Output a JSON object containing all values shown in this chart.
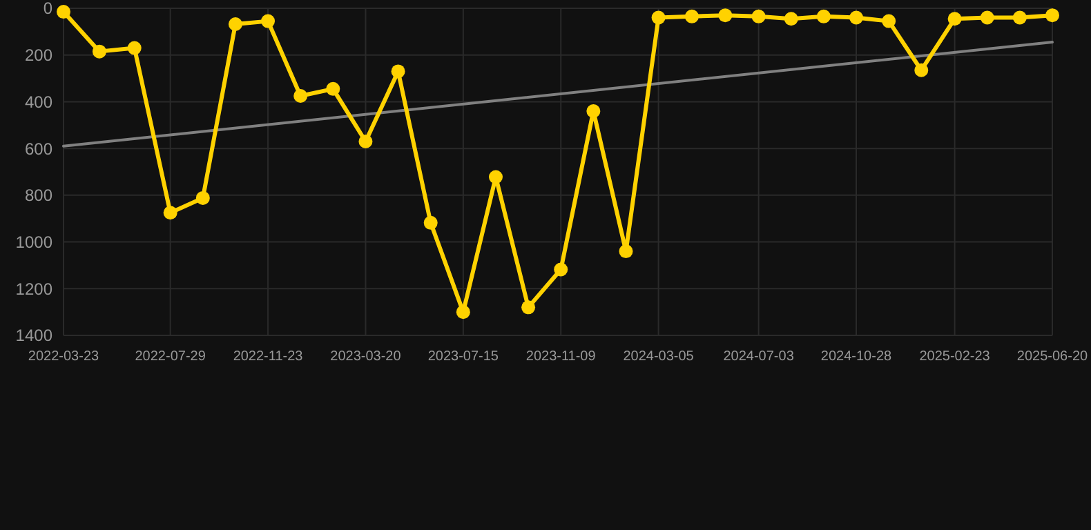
{
  "chart_data": {
    "type": "line",
    "x": [
      "2022-03-23",
      "2022-05-05",
      "2022-06-16",
      "2022-07-29",
      "2022-09-06",
      "2022-10-15",
      "2022-11-23",
      "2023-01-01",
      "2023-02-09",
      "2023-03-20",
      "2023-04-28",
      "2023-06-06",
      "2023-07-15",
      "2023-08-23",
      "2023-10-01",
      "2023-11-09",
      "2023-12-18",
      "2024-01-26",
      "2024-03-05",
      "2024-04-14",
      "2024-05-24",
      "2024-07-03",
      "2024-08-11",
      "2024-09-19",
      "2024-10-28",
      "2024-12-06",
      "2025-01-14",
      "2025-02-23",
      "2025-04-03",
      "2025-05-12",
      "2025-06-20"
    ],
    "series": [
      {
        "color": "#ffd200",
        "marker": "circle",
        "values": [
          15,
          185,
          170,
          875,
          812,
          68,
          55,
          375,
          345,
          570,
          270,
          918,
          1300,
          722,
          1280,
          1118,
          440,
          1040,
          40,
          35,
          30,
          35,
          45,
          35,
          40,
          55,
          265,
          45,
          40,
          40,
          30
        ]
      },
      {
        "type": "line",
        "color": "#808080",
        "marker": "none",
        "x": [
          "2022-03-23",
          "2025-06-20"
        ],
        "values": [
          590,
          145
        ]
      }
    ],
    "xlim": [
      "2022-03-23",
      "2025-06-20"
    ],
    "xticks": [
      "2022-03-23",
      "2022-07-29",
      "2022-11-23",
      "2023-03-20",
      "2023-07-15",
      "2023-11-09",
      "2024-03-05",
      "2024-07-03",
      "2024-10-28",
      "2025-02-23",
      "2025-06-20"
    ],
    "ylim": [
      1400,
      0
    ],
    "yticks": [
      0,
      200,
      400,
      600,
      800,
      1000,
      1200,
      1400
    ],
    "grid": true,
    "line_style": "solid"
  }
}
